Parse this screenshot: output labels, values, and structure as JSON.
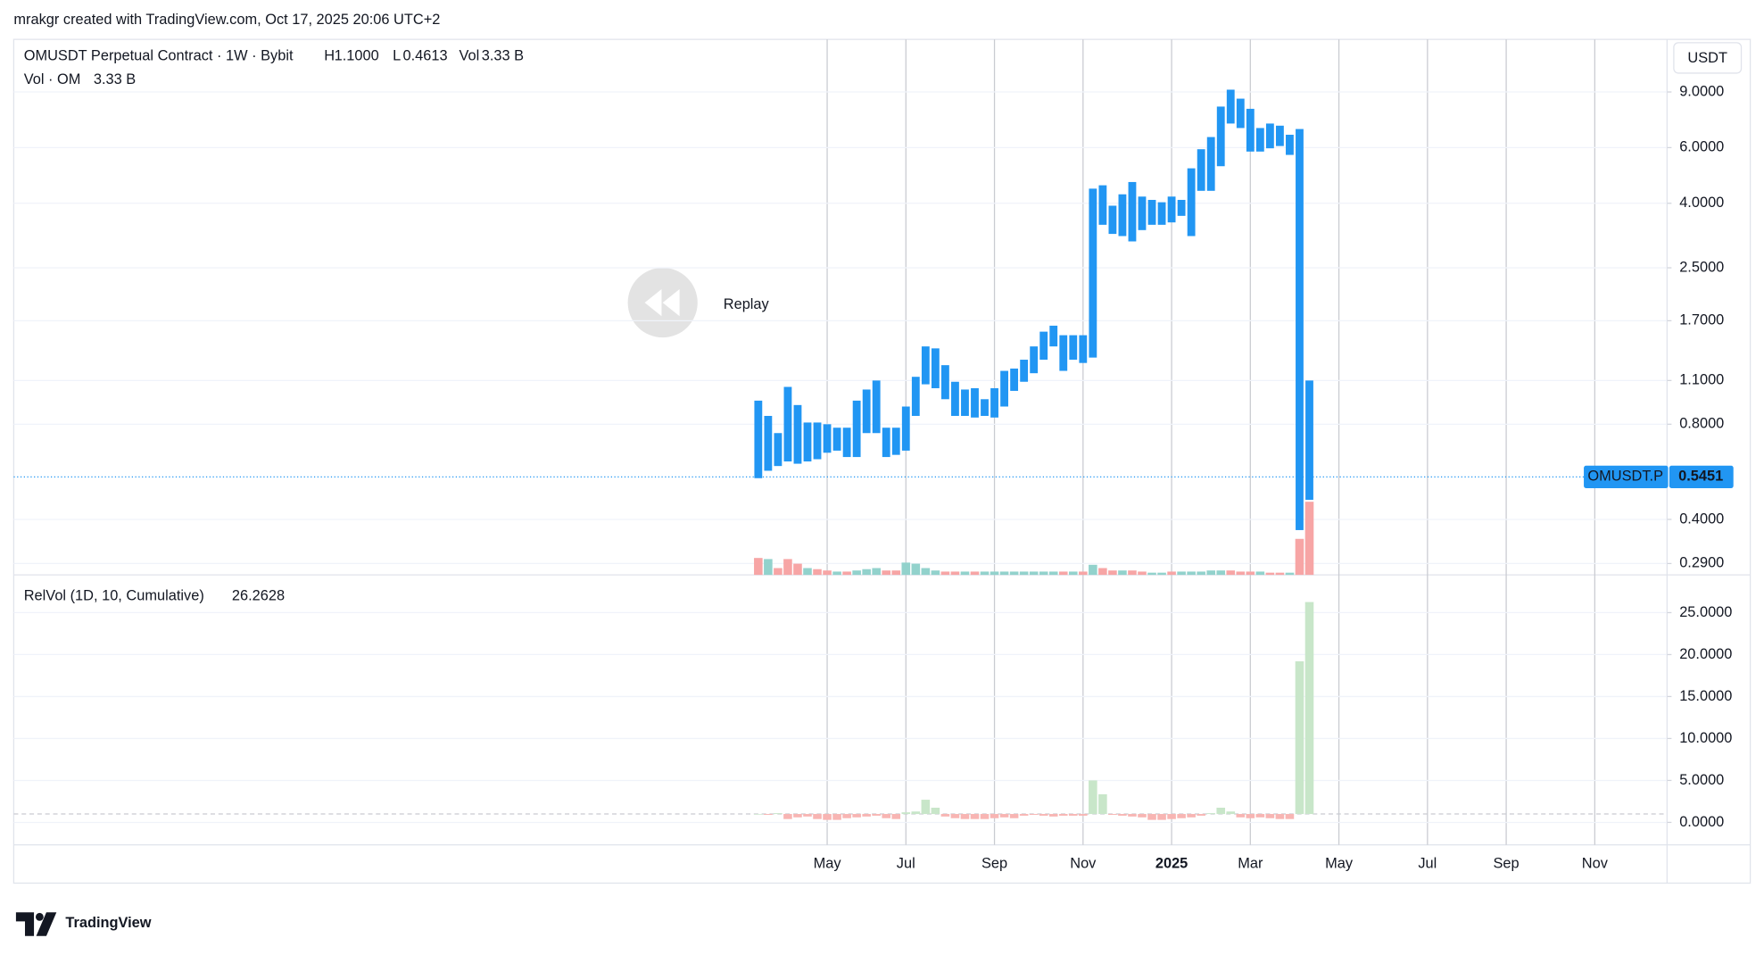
{
  "header": "mrakgr created with TradingView.com, Oct 17, 2025 20:06 UTC+2",
  "brand": "TradingView",
  "chart_data": [
    {
      "type": "range",
      "title": "OMUSDT Perpetual Contract · 1W · Bybit",
      "legend": {
        "h_key": "H",
        "h": "1.1000",
        "l_key": "L",
        "l": "0.4613",
        "vol_key": "Vol",
        "vol": "3.33 B"
      },
      "color": "#2196f3",
      "log_scale": true,
      "grid": true,
      "high": [
        0.95,
        0.85,
        0.75,
        1.05,
        0.92,
        0.81,
        0.81,
        0.8,
        0.78,
        0.78,
        0.95,
        1.03,
        1.1,
        0.78,
        0.78,
        0.91,
        1.13,
        1.41,
        1.39,
        1.23,
        1.09,
        1.03,
        1.04,
        0.96,
        1.04,
        1.18,
        1.2,
        1.28,
        1.41,
        1.57,
        1.64,
        1.53,
        1.53,
        1.53,
        4.45,
        4.56,
        3.93,
        4.27,
        4.67,
        4.2,
        4.1,
        4.03,
        4.2,
        4.1,
        5.16,
        5.93,
        6.48,
        8.09,
        9.15,
        8.57,
        7.96,
        6.92,
        7.15,
        7.04,
        6.59,
        6.87,
        1.1,
        null,
        null,
        null,
        null,
        null,
        null,
        null,
        null,
        null,
        null,
        null,
        null,
        null,
        null,
        null,
        null,
        null,
        null,
        null,
        null,
        null,
        null,
        null,
        null,
        null,
        null,
        null,
        null,
        null
      ],
      "low": [
        0.54,
        0.57,
        0.59,
        0.61,
        0.6,
        0.61,
        0.62,
        0.65,
        0.66,
        0.63,
        0.63,
        0.75,
        0.75,
        0.63,
        0.64,
        0.66,
        0.85,
        1.07,
        1.04,
        0.96,
        0.85,
        0.85,
        0.84,
        0.85,
        0.84,
        0.91,
        1.02,
        1.09,
        1.16,
        1.28,
        1.41,
        1.18,
        1.28,
        1.25,
        1.3,
        3.42,
        3.2,
        3.15,
        3.03,
        3.29,
        3.42,
        3.42,
        3.48,
        3.65,
        3.15,
        4.38,
        4.38,
        5.24,
        7.15,
        6.92,
        5.83,
        5.83,
        5.97,
        6.07,
        5.69,
        0.37,
        0.4613,
        null,
        null,
        null,
        null,
        null,
        null,
        null,
        null,
        null,
        null,
        null,
        null,
        null,
        null,
        null,
        null,
        null,
        null,
        null,
        null,
        null,
        null,
        null,
        null,
        null,
        null,
        null,
        null,
        null
      ],
      "ylim": [
        0.267,
        13.2
      ],
      "yticks": [
        {
          "value": 9,
          "label": "9.0000"
        },
        {
          "value": 6,
          "label": "6.0000"
        },
        {
          "value": 4,
          "label": "4.0000"
        },
        {
          "value": 2.5,
          "label": "2.5000"
        },
        {
          "value": 1.7,
          "label": "1.7000"
        },
        {
          "value": 1.1,
          "label": "1.1000"
        },
        {
          "value": 0.8,
          "label": "0.8000"
        },
        {
          "value": 0.4,
          "label": "0.4000"
        },
        {
          "value": 0.29,
          "label": "0.2900"
        }
      ],
      "volume": {
        "name": "Vol · OM",
        "value_label": "3.33 B",
        "values": [
          0.77,
          0.72,
          0.31,
          0.72,
          0.51,
          0.31,
          0.26,
          0.2,
          0.15,
          0.15,
          0.2,
          0.26,
          0.31,
          0.2,
          0.2,
          0.56,
          0.51,
          0.31,
          0.2,
          0.15,
          0.15,
          0.15,
          0.15,
          0.15,
          0.15,
          0.15,
          0.15,
          0.15,
          0.15,
          0.15,
          0.15,
          0.15,
          0.15,
          0.15,
          0.46,
          0.31,
          0.2,
          0.2,
          0.2,
          0.15,
          0.1,
          0.1,
          0.15,
          0.15,
          0.15,
          0.15,
          0.2,
          0.2,
          0.2,
          0.15,
          0.15,
          0.15,
          0.1,
          0.1,
          0.1,
          1.64,
          3.33,
          null,
          null,
          null,
          null,
          null,
          null,
          null,
          null,
          null,
          null,
          null,
          null,
          null,
          null,
          null,
          null,
          null,
          null,
          null,
          null,
          null,
          null,
          null,
          null,
          null,
          null,
          null,
          null,
          null
        ],
        "colors": [
          "#f7a5a5",
          "#92d2cc",
          "#f7a5a5",
          "#f7a5a5",
          "#f7a5a5",
          "#92d2cc",
          "#f7a5a5",
          "#f7a5a5",
          "#92d2cc",
          "#f7a5a5",
          "#92d2cc",
          "#92d2cc",
          "#92d2cc",
          "#f7a5a5",
          "#f7a5a5",
          "#92d2cc",
          "#92d2cc",
          "#92d2cc",
          "#92d2cc",
          "#f7a5a5",
          "#f7a5a5",
          "#92d2cc",
          "#f7a5a5",
          "#92d2cc",
          "#92d2cc",
          "#92d2cc",
          "#92d2cc",
          "#92d2cc",
          "#92d2cc",
          "#92d2cc",
          "#92d2cc",
          "#f7a5a5",
          "#92d2cc",
          "#f7a5a5",
          "#92d2cc",
          "#f7a5a5",
          "#f7a5a5",
          "#92d2cc",
          "#f7a5a5",
          "#f7a5a5",
          "#92d2cc",
          "#92d2cc",
          "#f7a5a5",
          "#92d2cc",
          "#92d2cc",
          "#92d2cc",
          "#92d2cc",
          "#92d2cc",
          "#f7a5a5",
          "#f7a5a5",
          "#f7a5a5",
          "#92d2cc",
          "#f7a5a5",
          "#f7a5a5",
          "#92d2cc",
          "#f7a5a5",
          "#f7a5a5",
          null,
          null,
          null,
          null,
          null,
          null,
          null,
          null,
          null,
          null,
          null,
          null,
          null,
          null,
          null,
          null,
          null,
          null,
          null,
          null,
          null,
          null,
          null,
          null,
          null,
          null,
          null,
          null,
          null
        ]
      },
      "last": {
        "label": "OMUSDT.P",
        "value": 0.5451,
        "color": "#2196f3"
      },
      "unit": "USDT",
      "watermark": "Replay"
    },
    {
      "type": "bar",
      "title": "RelVol (1D, 10, Cumulative)",
      "categories": [
        null,
        null,
        null,
        null,
        null,
        null,
        null,
        "May",
        null,
        null,
        null,
        null,
        null,
        null,
        null,
        "Jul",
        null,
        null,
        null,
        null,
        null,
        null,
        null,
        null,
        "Sep",
        null,
        null,
        null,
        null,
        null,
        null,
        null,
        null,
        "Nov",
        null,
        null,
        null,
        null,
        null,
        null,
        null,
        null,
        "2025",
        null,
        null,
        null,
        null,
        null,
        null,
        null,
        "Mar",
        null,
        null,
        null,
        null,
        null,
        null,
        null,
        null,
        "May",
        null,
        null,
        null,
        null,
        null,
        null,
        null,
        null,
        "Jul",
        null,
        null,
        null,
        null,
        null,
        null,
        null,
        "Sep",
        null,
        null,
        null,
        null,
        null,
        null,
        null,
        null,
        "Nov"
      ],
      "values": [
        1.0,
        0.9,
        1.1,
        0.4,
        0.6,
        0.7,
        0.4,
        0.3,
        0.3,
        0.5,
        0.6,
        0.7,
        0.8,
        0.5,
        0.4,
        1.2,
        1.3,
        2.7,
        1.75,
        0.7,
        0.5,
        0.4,
        0.4,
        0.4,
        0.5,
        0.6,
        0.5,
        0.8,
        0.9,
        0.8,
        0.7,
        0.8,
        0.8,
        0.8,
        5.0,
        3.35,
        0.9,
        0.8,
        0.7,
        0.6,
        0.3,
        0.3,
        0.4,
        0.5,
        0.6,
        0.8,
        1.1,
        1.75,
        1.3,
        0.6,
        0.5,
        0.6,
        0.5,
        0.4,
        0.4,
        19.2,
        26.2628,
        null,
        null,
        null,
        null,
        null,
        null,
        null,
        null,
        null,
        null,
        null,
        null,
        null,
        null,
        null,
        null,
        null,
        null,
        null,
        null,
        null,
        null,
        null,
        null,
        null,
        null,
        null,
        null,
        null
      ],
      "color_above": "#c8e6c9",
      "color_below": "#f8b5b3",
      "value_color": "#4caf50",
      "baseline": 1,
      "grid": true,
      "ylim": [
        -2.68,
        29.5
      ],
      "yticks": [
        {
          "value": 25,
          "label": "25.0000"
        },
        {
          "value": 20,
          "label": "20.0000"
        },
        {
          "value": 15,
          "label": "15.0000"
        },
        {
          "value": 10,
          "label": "10.0000"
        },
        {
          "value": 5,
          "label": "5.0000"
        },
        {
          "value": 0,
          "label": "0.0000"
        }
      ]
    }
  ]
}
